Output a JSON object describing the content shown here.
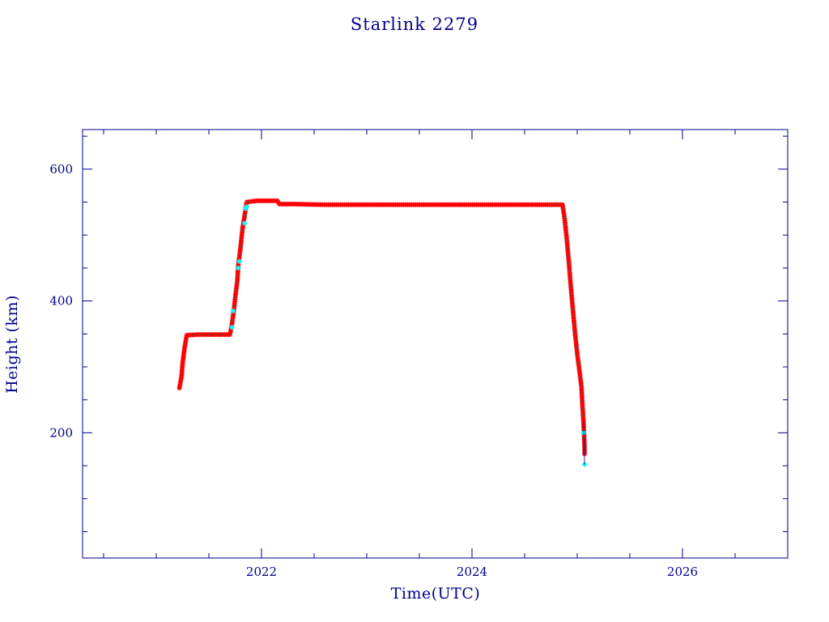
{
  "chart_data": {
    "type": "scatter",
    "title": "Starlink 2279",
    "xlabel": "Time(UTC)",
    "ylabel": "Height (km)",
    "xlim": [
      2020.3,
      2027.0
    ],
    "ylim": [
      10,
      660
    ],
    "x_ticks": [
      {
        "value": 2022,
        "label": "2022"
      },
      {
        "value": 2024,
        "label": "2024"
      },
      {
        "value": 2026,
        "label": "2026"
      }
    ],
    "y_ticks": [
      {
        "value": 200,
        "label": "200"
      },
      {
        "value": 400,
        "label": "400"
      },
      {
        "value": 600,
        "label": "600"
      }
    ],
    "x_minor_step": 0.5,
    "y_minor_step": 50,
    "grid": false,
    "colors": {
      "axes": "#00008b",
      "primary": "#ff0000",
      "secondary": "#00ffff",
      "overlay": "#555555"
    },
    "series": [
      {
        "color": "#ff0000",
        "marker": "star",
        "points": [
          [
            2021.22,
            268
          ],
          [
            2021.24,
            285
          ],
          [
            2021.25,
            305
          ],
          [
            2021.27,
            330
          ],
          [
            2021.29,
            348
          ],
          [
            2021.4,
            349
          ],
          [
            2021.5,
            349
          ],
          [
            2021.6,
            349
          ],
          [
            2021.7,
            349
          ],
          [
            2021.72,
            365
          ],
          [
            2021.74,
            390
          ],
          [
            2021.75,
            405
          ],
          [
            2021.77,
            430
          ],
          [
            2021.78,
            455
          ],
          [
            2021.8,
            480
          ],
          [
            2021.82,
            510
          ],
          [
            2021.84,
            530
          ],
          [
            2021.86,
            550
          ],
          [
            2021.95,
            552
          ],
          [
            2022.05,
            552
          ],
          [
            2022.15,
            552
          ],
          [
            2022.17,
            547
          ],
          [
            2022.3,
            547
          ],
          [
            2022.6,
            546
          ],
          [
            2022.9,
            546
          ],
          [
            2023.2,
            546
          ],
          [
            2023.5,
            546
          ],
          [
            2023.8,
            546
          ],
          [
            2024.1,
            546
          ],
          [
            2024.4,
            546
          ],
          [
            2024.7,
            546
          ],
          [
            2024.86,
            546
          ],
          [
            2024.88,
            525
          ],
          [
            2024.9,
            495
          ],
          [
            2024.92,
            460
          ],
          [
            2024.94,
            420
          ],
          [
            2024.96,
            385
          ],
          [
            2024.98,
            350
          ],
          [
            2025.0,
            320
          ],
          [
            2025.02,
            295
          ],
          [
            2025.04,
            270
          ],
          [
            2025.05,
            240
          ],
          [
            2025.06,
            215
          ],
          [
            2025.07,
            178
          ],
          [
            2025.07,
            168
          ]
        ]
      },
      {
        "color": "#00ffff",
        "marker": "star",
        "points": [
          [
            2021.72,
            360
          ],
          [
            2021.73,
            385
          ],
          [
            2021.78,
            450
          ],
          [
            2021.79,
            460
          ],
          [
            2021.84,
            518
          ],
          [
            2021.85,
            540
          ],
          [
            2021.86,
            543
          ],
          [
            2025.06,
            200
          ],
          [
            2025.07,
            152
          ]
        ]
      }
    ]
  }
}
